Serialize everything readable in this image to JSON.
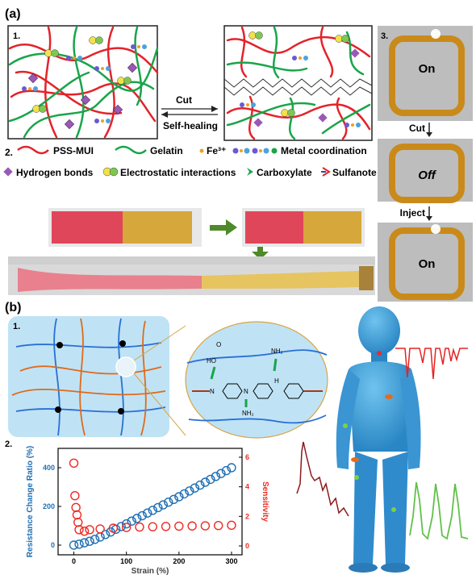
{
  "panel_a": {
    "label": "(a)",
    "sub1": "1.",
    "sub2": "2.",
    "sub3": "3.",
    "cut": "Cut",
    "self_healing": "Self-healing",
    "legend": {
      "pss": "PSS-MUI",
      "gelatin": "Gelatin",
      "fe": "Fe³⁺",
      "metal": "Metal coordination",
      "hbond": "Hydrogen bonds",
      "electro": "Electrostatic interactions",
      "carbox": "Carboxylate",
      "sulf": "Sulfanote"
    },
    "circuit": {
      "on1": "On",
      "cut": "Cut",
      "off": "Off",
      "inject": "Inject",
      "on2": "On"
    }
  },
  "panel_b": {
    "label": "(b)",
    "sub1": "1.",
    "sub2": "2.",
    "chem": {
      "ho": "HO",
      "o": "O",
      "nh2_top": "NH₂",
      "nh2_bot": "NH₂",
      "n1": "N",
      "n2": "N",
      "h": "H"
    }
  },
  "colors": {
    "pss": "#e3232a",
    "gelatin": "#19a54a",
    "blue_series": "#1f6fb4",
    "red_series": "#ee2b24",
    "network_blue": "#2a6fd6",
    "network_orange": "#e06a1b",
    "panel_bg": "#bfe3f5",
    "figure_blue": "#3d9fd8",
    "signal_red": "#e52222",
    "signal_darkred": "#8b1a1a",
    "signal_green": "#62c04a"
  },
  "chart_data": {
    "type": "scatter",
    "xlabel": "Strain (%)",
    "ylabel": "Resistance Change Ratio (%)",
    "y2label": "Sensitivity",
    "xlim": [
      -30,
      320
    ],
    "ylim": [
      -50,
      500
    ],
    "y2lim": [
      -0.6,
      6.6
    ],
    "xticks": [
      0,
      100,
      200,
      300
    ],
    "yticks": [
      0,
      200,
      400
    ],
    "y2ticks": [
      0,
      2,
      4,
      6
    ],
    "series": [
      {
        "axis": "left",
        "x": [
          0,
          10,
          20,
          30,
          40,
          50,
          60,
          70,
          80,
          90,
          100,
          110,
          120,
          130,
          140,
          150,
          160,
          170,
          180,
          190,
          200,
          210,
          220,
          230,
          240,
          250,
          260,
          270,
          280,
          290,
          300
        ],
        "values": [
          0,
          5,
          12,
          20,
          30,
          42,
          55,
          68,
          82,
          96,
          110,
          124,
          138,
          152,
          166,
          180,
          194,
          208,
          222,
          236,
          250,
          265,
          280,
          295,
          310,
          325,
          340,
          355,
          370,
          385,
          400
        ]
      },
      {
        "axis": "right",
        "x": [
          0,
          2,
          4,
          6,
          8,
          10,
          20,
          30,
          50,
          75,
          100,
          125,
          150,
          175,
          200,
          225,
          250,
          275,
          300
        ],
        "values": [
          5.6,
          3.4,
          2.6,
          2.1,
          1.6,
          1.1,
          1.0,
          1.1,
          1.15,
          1.2,
          1.25,
          1.28,
          1.3,
          1.32,
          1.34,
          1.35,
          1.36,
          1.38,
          1.4
        ]
      }
    ]
  }
}
